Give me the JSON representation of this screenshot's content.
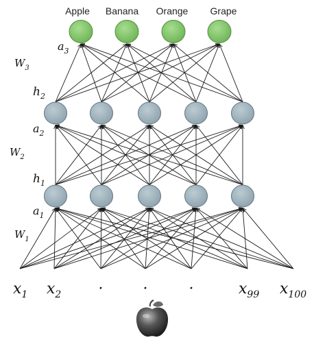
{
  "output_labels": [
    "Apple",
    "Banana",
    "Orange",
    "Grape"
  ],
  "layer_labels": {
    "a3": {
      "base": "a",
      "sub": "3"
    },
    "h2": {
      "base": "h",
      "sub": "2"
    },
    "a2": {
      "base": "a",
      "sub": "2"
    },
    "h1": {
      "base": "h",
      "sub": "1"
    },
    "a1": {
      "base": "a",
      "sub": "1"
    }
  },
  "weight_labels": {
    "w3": {
      "base": "W",
      "sub": "3"
    },
    "w2": {
      "base": "W",
      "sub": "2"
    },
    "w1": {
      "base": "W",
      "sub": "1"
    }
  },
  "inputs": [
    {
      "base": "x",
      "sub": "1"
    },
    {
      "base": "x",
      "sub": "2"
    },
    {
      "base": "·",
      "sub": ""
    },
    {
      "base": "·",
      "sub": ""
    },
    {
      "base": "·",
      "sub": ""
    },
    {
      "base": "x",
      "sub": "99"
    },
    {
      "base": "x",
      "sub": "100"
    }
  ],
  "layers": {
    "output_count": 4,
    "hidden2_count": 5,
    "hidden1_count": 5,
    "input_count": 7
  },
  "colors": {
    "output_node": "#7fc46a",
    "output_stroke": "#4f8f3e",
    "hidden_node": "#9fb3bd",
    "hidden_stroke": "#5f7480",
    "edge": "#1a1a1a"
  },
  "icons": {
    "input_image": "apple-icon"
  }
}
